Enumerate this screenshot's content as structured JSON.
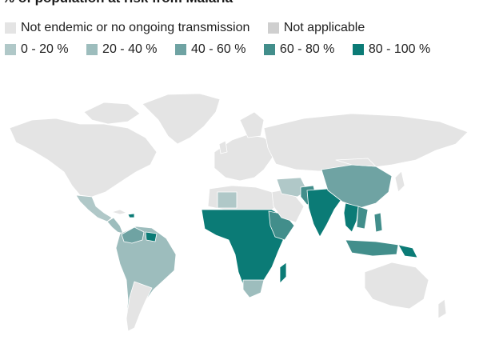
{
  "title": "% of population at risk from Malaria",
  "legend": {
    "row1": [
      {
        "label": "Not endemic or no ongoing transmission",
        "color": "#e4e4e4"
      },
      {
        "label": "Not applicable",
        "color": "#cfcfcf"
      }
    ],
    "row2": [
      {
        "label": "0 - 20 %",
        "color": "#b0c8c8"
      },
      {
        "label": "20 - 40 %",
        "color": "#9dbdbd"
      },
      {
        "label": "40 - 60 %",
        "color": "#6fa3a3"
      },
      {
        "label": "60 - 80 %",
        "color": "#428e8b"
      },
      {
        "label": "80 - 100 %",
        "color": "#0b7b76"
      }
    ]
  },
  "colors": {
    "land": "#e4e4e4",
    "na": "#cfcfcf",
    "c0_20": "#b0c8c8",
    "c20_40": "#9dbdbd",
    "c40_60": "#6fa3a3",
    "c60_80": "#428e8b",
    "c80_100": "#0b7b76"
  }
}
